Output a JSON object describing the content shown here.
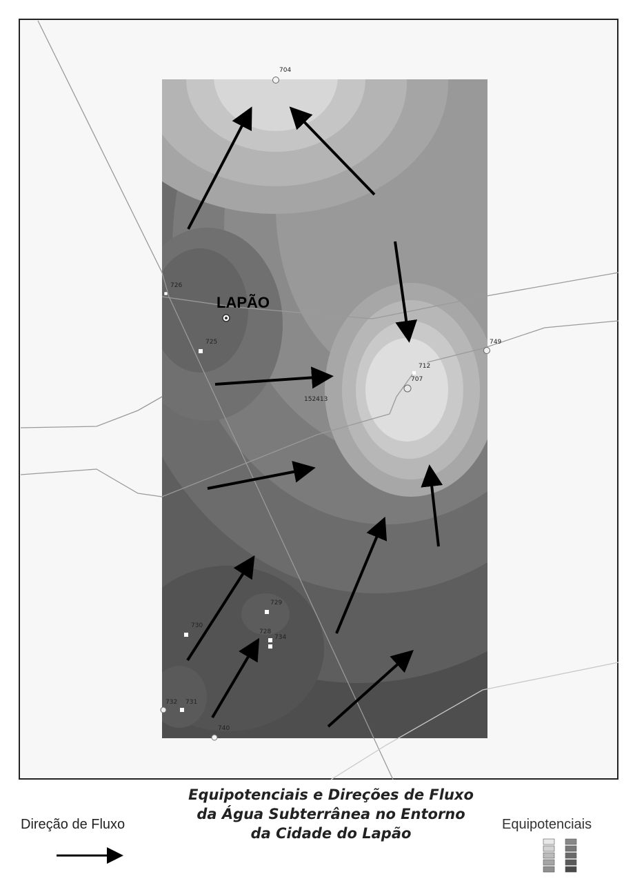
{
  "title": {
    "line1": "Equipotenciais e Direções de Fluxo",
    "line2": "da Água Subterrânea no Entorno",
    "line3": "da Cidade do Lapão"
  },
  "city_label": "LAPÃO",
  "legend": {
    "flow_label": "Direção de Fluxo",
    "equipotential_label": "Equipotenciais",
    "equipotential_swatch_colors_left": [
      "#e8e8e8",
      "#d2d2d2",
      "#bbbbbb",
      "#a5a5a5",
      "#909090"
    ],
    "equipotential_swatch_colors_right": [
      "#888888",
      "#787878",
      "#6a6a6a",
      "#5a5a5a",
      "#4a4a4a"
    ]
  },
  "wells": [
    {
      "id": "w704",
      "label": "704"
    },
    {
      "id": "w726",
      "label": "726"
    },
    {
      "id": "w725",
      "label": "725"
    },
    {
      "id": "w749",
      "label": "749"
    },
    {
      "id": "w712",
      "label": "712"
    },
    {
      "id": "w707",
      "label": "707"
    },
    {
      "id": "w152413",
      "label": "152413"
    },
    {
      "id": "w729",
      "label": "729"
    },
    {
      "id": "w730",
      "label": "730"
    },
    {
      "id": "w728",
      "label": "728"
    },
    {
      "id": "w734",
      "label": "734"
    },
    {
      "id": "w732",
      "label": "732"
    },
    {
      "id": "w731",
      "label": "731"
    },
    {
      "id": "w740",
      "label": "740"
    }
  ]
}
